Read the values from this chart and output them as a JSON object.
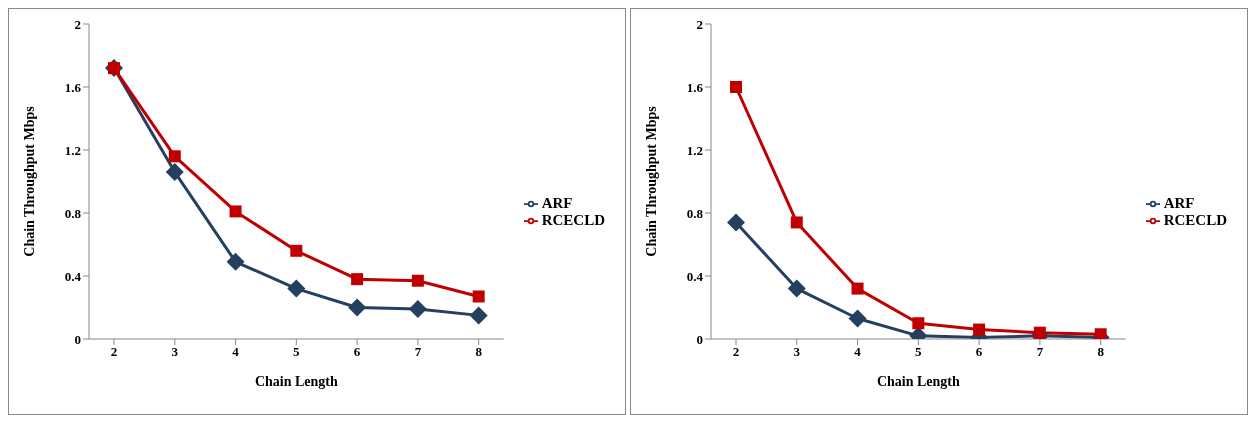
{
  "chart_data": [
    {
      "type": "line",
      "xlabel": "Chain Length",
      "ylabel": "Chain Throughput Mbps",
      "categories": [
        "2",
        "3",
        "4",
        "5",
        "6",
        "7",
        "8"
      ],
      "ylim": [
        0,
        2
      ],
      "yticks": [
        0,
        0.4,
        0.8,
        1.2,
        1.6,
        2
      ],
      "grid": false,
      "legend": "right",
      "line_style": "solid",
      "series": [
        {
          "name": "ARF",
          "color": "#243f60",
          "marker": "diamond",
          "values": [
            1.72,
            1.06,
            0.49,
            0.32,
            0.2,
            0.19,
            0.15
          ]
        },
        {
          "name": "RCECLD",
          "color": "#c00000",
          "marker": "square",
          "values": [
            1.72,
            1.16,
            0.81,
            0.56,
            0.38,
            0.37,
            0.27
          ]
        }
      ]
    },
    {
      "type": "line",
      "xlabel": "Chain Length",
      "ylabel": "Chain Throughput Mbps",
      "categories": [
        "2",
        "3",
        "4",
        "5",
        "6",
        "7",
        "8"
      ],
      "ylim": [
        0,
        2
      ],
      "yticks": [
        0,
        0.4,
        0.8,
        1.2,
        1.6,
        2
      ],
      "grid": false,
      "legend": "right",
      "line_style": "solid",
      "series": [
        {
          "name": "ARF",
          "color": "#243f60",
          "marker": "diamond",
          "values": [
            0.74,
            0.32,
            0.13,
            0.02,
            0.01,
            0.02,
            0.01
          ]
        },
        {
          "name": "RCECLD",
          "color": "#c00000",
          "marker": "square",
          "values": [
            1.6,
            0.74,
            0.32,
            0.1,
            0.06,
            0.04,
            0.03
          ]
        }
      ]
    }
  ]
}
